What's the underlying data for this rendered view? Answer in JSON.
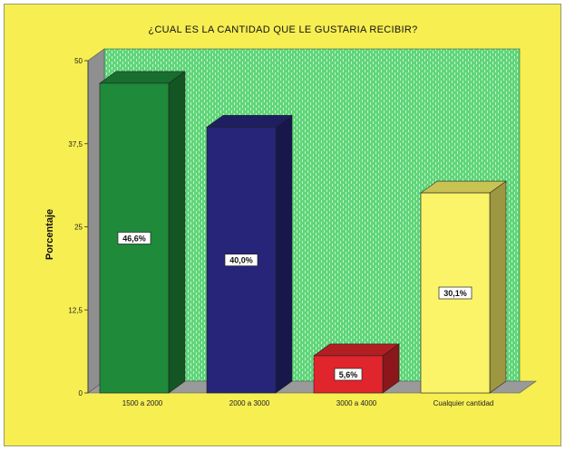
{
  "chart_data": {
    "type": "bar",
    "title": "¿CUAL ES LA CANTIDAD QUE LE GUSTARIA RECIBIR?",
    "ylabel": "Porcentaje",
    "xlabel": "",
    "ylim": [
      0,
      50
    ],
    "yticks": [
      0,
      12.5,
      25,
      37.5,
      50
    ],
    "ytick_labels": [
      "0",
      "12,5",
      "25",
      "37,5",
      "50"
    ],
    "categories": [
      "1500 a 2000",
      "2000 a 3000",
      "3000 a 4000",
      "Cualquier cantidad"
    ],
    "values": [
      46.6,
      40.0,
      5.6,
      30.1
    ],
    "value_labels": [
      "46,6%",
      "40,0%",
      "5,6%",
      "30,1%"
    ],
    "bar_colors": [
      "#1e8a3a",
      "#26257a",
      "#e0252c",
      "#fbf468"
    ],
    "grid": "vertical-dashed",
    "legend": "none"
  },
  "colors": {
    "frame_background": "#f7ee52",
    "plot_background": "#5fd67a",
    "floor": "#9a9a9a",
    "left_wall": "#8f8f8f"
  }
}
